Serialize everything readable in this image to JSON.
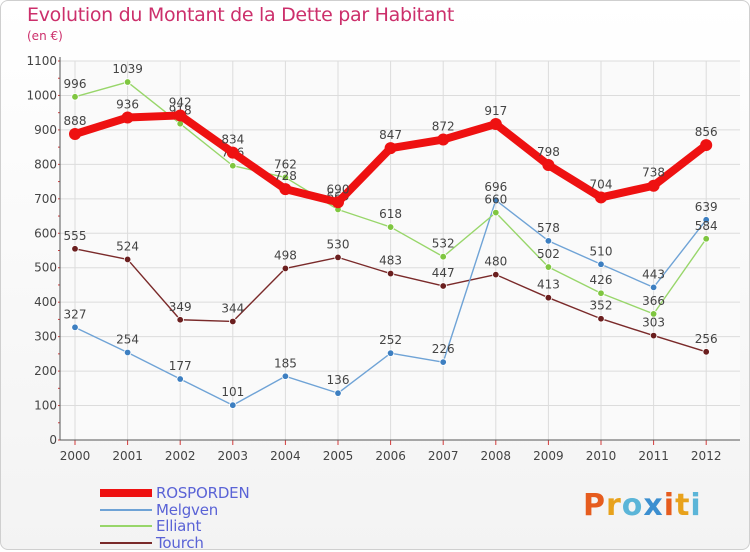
{
  "title": "Evolution du Montant de la Dette par Habitant",
  "subtitle": "(en €)",
  "logo": {
    "text": "Proxiti",
    "letter_colors": [
      "#e65c1e",
      "#e8a21c",
      "#5bb5d8",
      "#3c8fd0",
      "#e65c1e",
      "#e8a21c",
      "#5bb5d8"
    ]
  },
  "chart_data": {
    "type": "line",
    "x": [
      "2000",
      "2001",
      "2002",
      "2003",
      "2004",
      "2005",
      "2006",
      "2007",
      "2008",
      "2009",
      "2010",
      "2011",
      "2012"
    ],
    "ylim": [
      0,
      1100
    ],
    "yticks": [
      0,
      100,
      200,
      300,
      400,
      500,
      600,
      700,
      800,
      900,
      1000,
      1100
    ],
    "grid": true,
    "legend_position": "bottom-left",
    "series": [
      {
        "name": "Tourch",
        "color": "#7a2a2a",
        "marker_color": "#6b1f1f",
        "values": [
          555,
          524,
          349,
          344,
          498,
          530,
          483,
          447,
          480,
          413,
          352,
          303,
          256
        ]
      },
      {
        "name": "Melgven",
        "color": "#6fa3d6",
        "marker_color": "#3d7fc1",
        "values": [
          327,
          254,
          177,
          101,
          185,
          136,
          252,
          226,
          696,
          578,
          510,
          443,
          639
        ]
      },
      {
        "name": "Elliant",
        "color": "#98d66a",
        "marker_color": "#7fc640",
        "values": [
          996,
          1039,
          918,
          796,
          762,
          669,
          618,
          532,
          660,
          502,
          426,
          366,
          584
        ]
      },
      {
        "name": "ROSPORDEN",
        "color": "#ee1111",
        "marker_color": "#ee1111",
        "values": [
          888,
          936,
          942,
          834,
          728,
          690,
          847,
          872,
          917,
          798,
          704,
          738,
          856
        ]
      }
    ]
  }
}
